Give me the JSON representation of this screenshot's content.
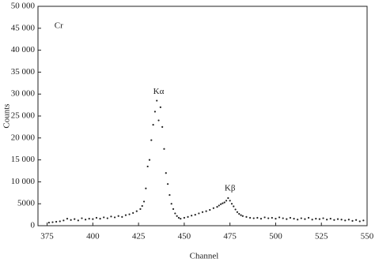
{
  "chart_data": {
    "type": "scatter",
    "xlabel": "Channel",
    "ylabel": "Counts",
    "annotations": [
      {
        "text": "Cr",
        "x": 379,
        "y": 45500
      },
      {
        "text": "Kα",
        "x": 436,
        "y": 30500
      },
      {
        "text": "Kβ",
        "x": 475,
        "y": 8500
      }
    ],
    "color": "#222222",
    "xlim": [
      370,
      550
    ],
    "ylim": [
      0,
      50000
    ],
    "xticks": [
      375,
      400,
      425,
      450,
      475,
      500,
      525,
      550
    ],
    "yticks": [
      0,
      {
        "value": 5000,
        "label": "5000"
      },
      {
        "value": 10000,
        "label": "10 000"
      },
      {
        "value": 15000,
        "label": "15 000"
      },
      {
        "value": 20000,
        "label": "20 000"
      },
      {
        "value": 25000,
        "label": "25 000"
      },
      {
        "value": 30000,
        "label": "30 000"
      },
      {
        "value": 35000,
        "label": "35 000"
      },
      {
        "value": 40000,
        "label": "40 000"
      },
      {
        "value": 45000,
        "label": "45 000"
      },
      {
        "value": 50000,
        "label": "50 000"
      }
    ],
    "x": [
      376,
      378,
      380,
      382,
      384,
      386,
      388,
      390,
      392,
      394,
      396,
      398,
      400,
      402,
      404,
      406,
      408,
      410,
      412,
      414,
      416,
      418,
      420,
      422,
      424,
      426,
      427,
      428,
      429,
      430,
      431,
      432,
      433,
      434,
      435,
      436,
      437,
      438,
      439,
      440,
      441,
      442,
      443,
      444,
      445,
      446,
      447,
      448,
      450,
      452,
      454,
      456,
      458,
      460,
      462,
      464,
      466,
      468,
      469,
      470,
      471,
      472,
      473,
      474,
      475,
      476,
      477,
      478,
      479,
      480,
      481,
      482,
      484,
      486,
      488,
      490,
      492,
      494,
      496,
      498,
      500,
      502,
      504,
      506,
      508,
      510,
      512,
      514,
      516,
      518,
      520,
      522,
      524,
      526,
      528,
      530,
      532,
      534,
      536,
      538,
      540,
      542,
      544,
      546,
      548
    ],
    "y": [
      700,
      800,
      900,
      1000,
      1200,
      1600,
      1300,
      1500,
      1200,
      1700,
      1400,
      1600,
      1500,
      1800,
      1600,
      1900,
      1700,
      2100,
      1900,
      2200,
      2000,
      2400,
      2600,
      2900,
      3300,
      3800,
      4500,
      5500,
      8500,
      13500,
      15000,
      19500,
      23000,
      26000,
      28500,
      24000,
      27000,
      22500,
      17500,
      12000,
      9500,
      7000,
      5000,
      3800,
      2800,
      2200,
      1800,
      1600,
      1800,
      2000,
      2300,
      2500,
      2800,
      3100,
      3300,
      3600,
      4000,
      4300,
      4600,
      4900,
      5100,
      5300,
      5700,
      6300,
      5700,
      5000,
      4400,
      3700,
      3100,
      2700,
      2400,
      2200,
      2000,
      1800,
      1700,
      1800,
      1600,
      1900,
      1700,
      1800,
      1600,
      1900,
      1700,
      1500,
      1800,
      1600,
      1400,
      1700,
      1500,
      1800,
      1400,
      1600,
      1500,
      1700,
      1400,
      1600,
      1300,
      1500,
      1400,
      1200,
      1400,
      1100,
      1300,
      1000,
      1200
    ]
  }
}
